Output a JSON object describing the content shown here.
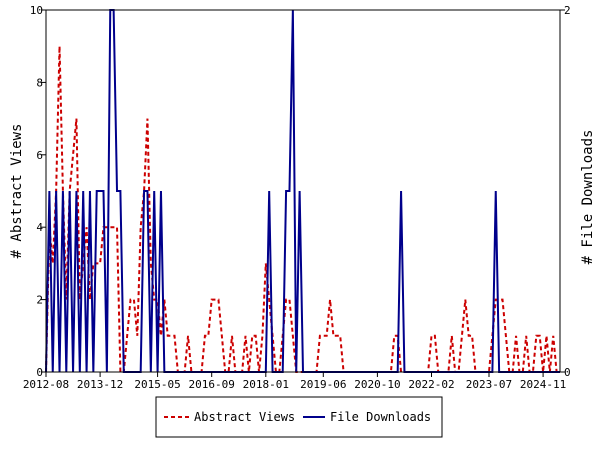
{
  "chart_data": {
    "type": "line",
    "ylabel": "# Abstract Views",
    "y2label": "# File Downloads",
    "ylim": [
      0,
      10
    ],
    "y2lim": [
      0,
      2
    ],
    "x_ticks": [
      "2012-08",
      "2013-12",
      "2015-05",
      "2016-09",
      "2018-01",
      "2019-06",
      "2020-10",
      "2022-02",
      "2023-07",
      "2024-11"
    ],
    "y_ticks": [
      0,
      2,
      4,
      6,
      8,
      10
    ],
    "y2_ticks": [
      0,
      2
    ],
    "legend_position": "bottom-center",
    "x_months": {
      "start": "2012-08",
      "count": 153
    },
    "series": [
      {
        "name": "Abstract Views",
        "axis": "left",
        "color": "#cc0000",
        "style": "dashed",
        "values": [
          0,
          4,
          3,
          5,
          9,
          5,
          2,
          5,
          6,
          7,
          2,
          3,
          4,
          2,
          3,
          3,
          3,
          4,
          4,
          4,
          4,
          4,
          0,
          0,
          1,
          2,
          2,
          1,
          4,
          5,
          7,
          3,
          2,
          2,
          1,
          2,
          1,
          1,
          1,
          0,
          0,
          0,
          1,
          0,
          0,
          0,
          0,
          1,
          1,
          2,
          2,
          2,
          1,
          0,
          0,
          1,
          0,
          0,
          0,
          1,
          0,
          1,
          1,
          0,
          1,
          3,
          2,
          1,
          0,
          0,
          1,
          2,
          2,
          1,
          0,
          0,
          0,
          0,
          0,
          0,
          0,
          1,
          1,
          1,
          2,
          1,
          1,
          1,
          0,
          0,
          0,
          0,
          0,
          0,
          0,
          0,
          0,
          0,
          0,
          0,
          0,
          0,
          0,
          1,
          1,
          0,
          0,
          0,
          0,
          0,
          0,
          0,
          0,
          0,
          1,
          1,
          0,
          0,
          0,
          0,
          1,
          0,
          0,
          1,
          2,
          1,
          1,
          0,
          0,
          0,
          0,
          0,
          1,
          2,
          2,
          2,
          1,
          0,
          0,
          1,
          0,
          0,
          1,
          0,
          0,
          1,
          1,
          0,
          1,
          0,
          1,
          0,
          0
        ]
      },
      {
        "name": "File Downloads",
        "axis": "right",
        "color": "#00008b",
        "style": "solid",
        "values": [
          0,
          1,
          0,
          1,
          0,
          1,
          0,
          1,
          0,
          1,
          0,
          1,
          0,
          1,
          0,
          1,
          1,
          1,
          0,
          2,
          2,
          1,
          1,
          0,
          0,
          0,
          0,
          0,
          0,
          1,
          1,
          0,
          1,
          0,
          1,
          0,
          0,
          0,
          0,
          0,
          0,
          0,
          0,
          0,
          0,
          0,
          0,
          0,
          0,
          0,
          0,
          0,
          0,
          0,
          0,
          0,
          0,
          0,
          0,
          0,
          0,
          0,
          0,
          0,
          0,
          0,
          1,
          0,
          0,
          0,
          0,
          1,
          1,
          2,
          0,
          1,
          0,
          0,
          0,
          0,
          0,
          0,
          0,
          0,
          0,
          0,
          0,
          0,
          0,
          0,
          0,
          0,
          0,
          0,
          0,
          0,
          0,
          0,
          0,
          0,
          0,
          0,
          0,
          0,
          0,
          1,
          0,
          0,
          0,
          0,
          0,
          0,
          0,
          0,
          0,
          0,
          0,
          0,
          0,
          0,
          0,
          0,
          0,
          0,
          0,
          0,
          0,
          0,
          0,
          0,
          0,
          0,
          0,
          1,
          0,
          0,
          0,
          0,
          0,
          0,
          0,
          0,
          0,
          0,
          0,
          0,
          0,
          0,
          0,
          0,
          0,
          0,
          0
        ]
      }
    ]
  }
}
